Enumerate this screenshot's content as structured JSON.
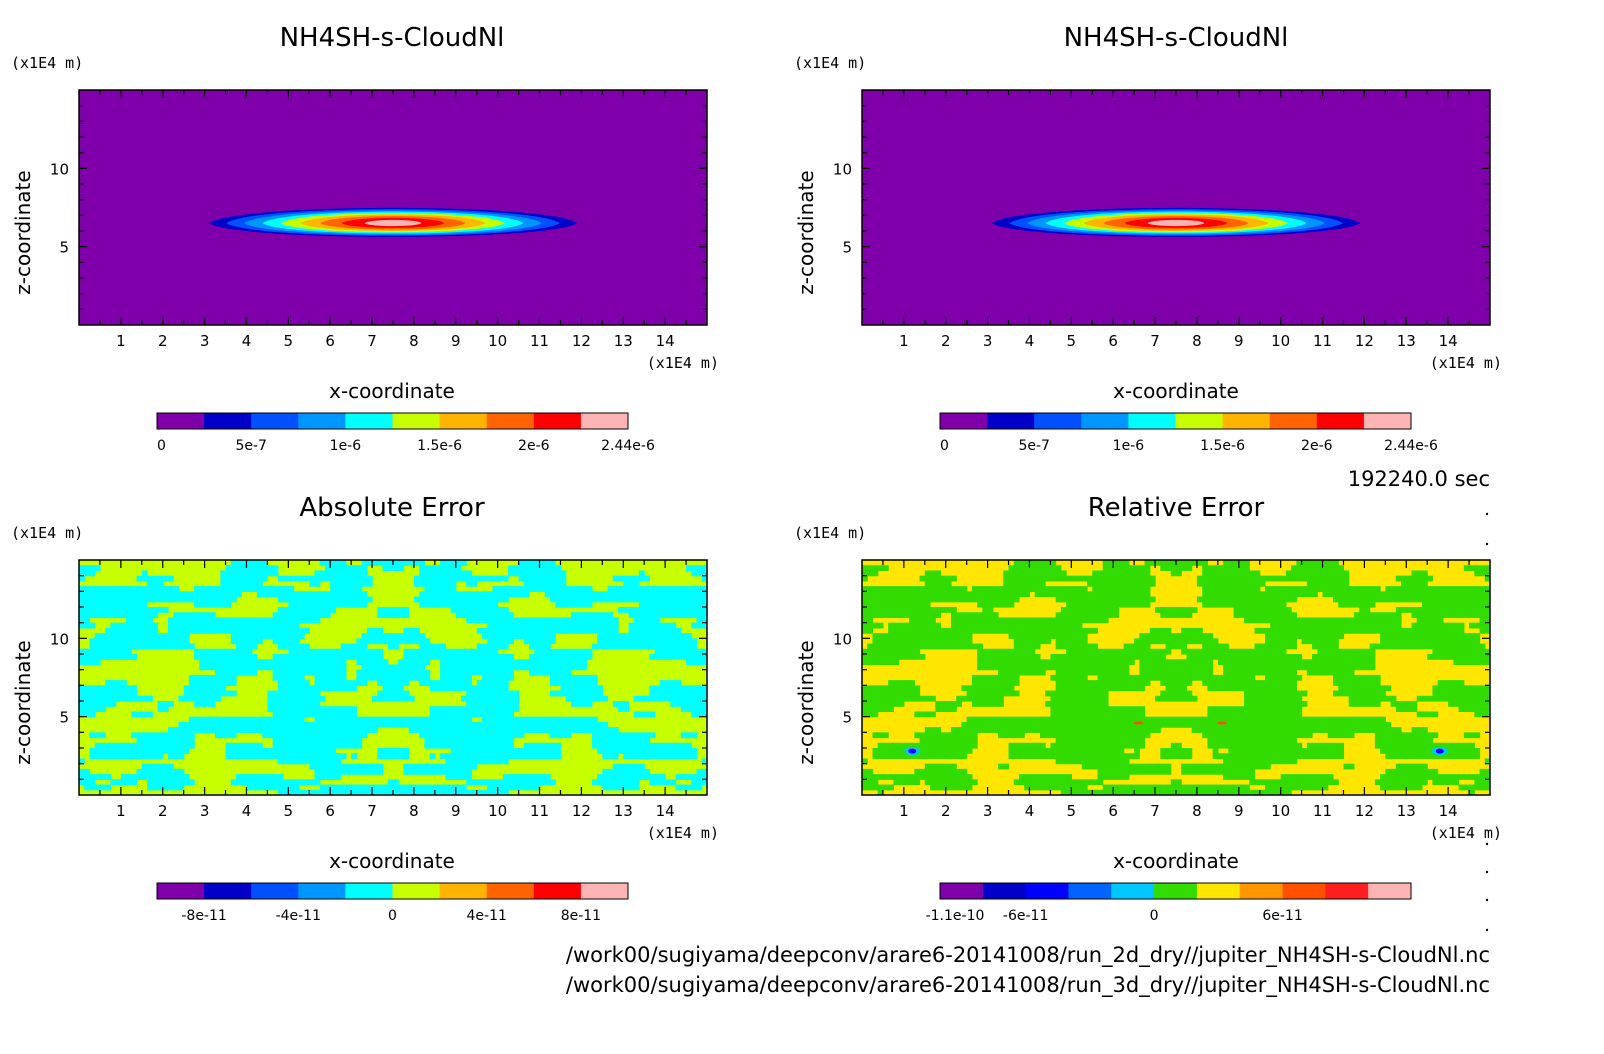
{
  "time_label": "192240.0 sec",
  "footer": {
    "line1": "/work00/sugiyama/deepconv/arare6-20141008/run_2d_dry//jupiter_NH4SH-s-CloudNl.nc",
    "line2": "/work00/sugiyama/deepconv/arare6-20141008/run_3d_dry//jupiter_NH4SH-s-CloudNl.nc"
  },
  "chart_data": [
    {
      "type": "heatmap",
      "title": "NH4SH-s-CloudNl",
      "xlabel": "x-coordinate",
      "ylabel": "z-coordinate",
      "xunit": "(x1E4 m)",
      "yunit": "(x1E4 m)",
      "xlim": [
        0,
        15
      ],
      "ylim": [
        0,
        15
      ],
      "xticks": [
        "1",
        "2",
        "3",
        "4",
        "5",
        "6",
        "7",
        "8",
        "9",
        "10",
        "11",
        "12",
        "13",
        "14"
      ],
      "yticks": [
        "5",
        "10"
      ],
      "colorbar": {
        "colors": [
          "#7f00aa",
          "#0000c8",
          "#0050ff",
          "#0096ff",
          "#00ffff",
          "#c8ff00",
          "#ffb400",
          "#ff6400",
          "#ff0000",
          "#ffb4b4"
        ],
        "labels": [
          "0",
          "5e-7",
          "1e-6",
          "1.5e-6",
          "2e-6",
          "2.44e-6"
        ]
      },
      "feature": {
        "kind": "blob",
        "x_center": 7.5,
        "z_center": 6.5,
        "x_half_width": 4.4,
        "z_half_height": 1.3,
        "max": 2.44e-06
      }
    },
    {
      "type": "heatmap",
      "title": "NH4SH-s-CloudNl",
      "xlabel": "x-coordinate",
      "ylabel": "z-coordinate",
      "xunit": "(x1E4 m)",
      "yunit": "(x1E4 m)",
      "xlim": [
        0,
        15
      ],
      "ylim": [
        0,
        15
      ],
      "xticks": [
        "1",
        "2",
        "3",
        "4",
        "5",
        "6",
        "7",
        "8",
        "9",
        "10",
        "11",
        "12",
        "13",
        "14"
      ],
      "yticks": [
        "5",
        "10"
      ],
      "colorbar": {
        "colors": [
          "#7f00aa",
          "#0000c8",
          "#0050ff",
          "#0096ff",
          "#00ffff",
          "#c8ff00",
          "#ffb400",
          "#ff6400",
          "#ff0000",
          "#ffb4b4"
        ],
        "labels": [
          "0",
          "5e-7",
          "1e-6",
          "1.5e-6",
          "2e-6",
          "2.44e-6"
        ]
      },
      "feature": {
        "kind": "blob",
        "x_center": 7.5,
        "z_center": 6.5,
        "x_half_width": 4.4,
        "z_half_height": 1.3,
        "max": 2.44e-06
      }
    },
    {
      "type": "heatmap",
      "title": "Absolute Error",
      "xlabel": "x-coordinate",
      "ylabel": "z-coordinate",
      "xunit": "(x1E4 m)",
      "yunit": "(x1E4 m)",
      "xlim": [
        0,
        15
      ],
      "ylim": [
        0,
        15
      ],
      "xticks": [
        "1",
        "2",
        "3",
        "4",
        "5",
        "6",
        "7",
        "8",
        "9",
        "10",
        "11",
        "12",
        "13",
        "14"
      ],
      "yticks": [
        "5",
        "10"
      ],
      "colorbar": {
        "colors": [
          "#7f00aa",
          "#0000c8",
          "#0050ff",
          "#0096ff",
          "#00ffff",
          "#c8ff00",
          "#ffb400",
          "#ff6400",
          "#ff0000",
          "#ffb4b4"
        ],
        "labels": [
          "-8e-11",
          "-4e-11",
          "0",
          "4e-11",
          "8e-11"
        ]
      },
      "feature": {
        "kind": "noise",
        "background": "#c8ff00",
        "patch": "#00ffff"
      }
    },
    {
      "type": "heatmap",
      "title": "Relative Error",
      "xlabel": "x-coordinate",
      "ylabel": "z-coordinate",
      "xunit": "(x1E4 m)",
      "yunit": "(x1E4 m)",
      "xlim": [
        0,
        15
      ],
      "ylim": [
        0,
        15
      ],
      "xticks": [
        "1",
        "2",
        "3",
        "4",
        "5",
        "6",
        "7",
        "8",
        "9",
        "10",
        "11",
        "12",
        "13",
        "14"
      ],
      "yticks": [
        "5",
        "10"
      ],
      "colorbar": {
        "colors": [
          "#7f00aa",
          "#0000c8",
          "#0000ff",
          "#0064ff",
          "#00c8ff",
          "#32dc00",
          "#ffe600",
          "#ff9600",
          "#ff5000",
          "#ff1e1e",
          "#ffb4b4"
        ],
        "labels": [
          "-1.1e-10",
          "-6e-11",
          "0",
          "6e-11"
        ]
      },
      "feature": {
        "kind": "noise",
        "background": "#ffe600",
        "patch": "#32dc00"
      }
    }
  ]
}
